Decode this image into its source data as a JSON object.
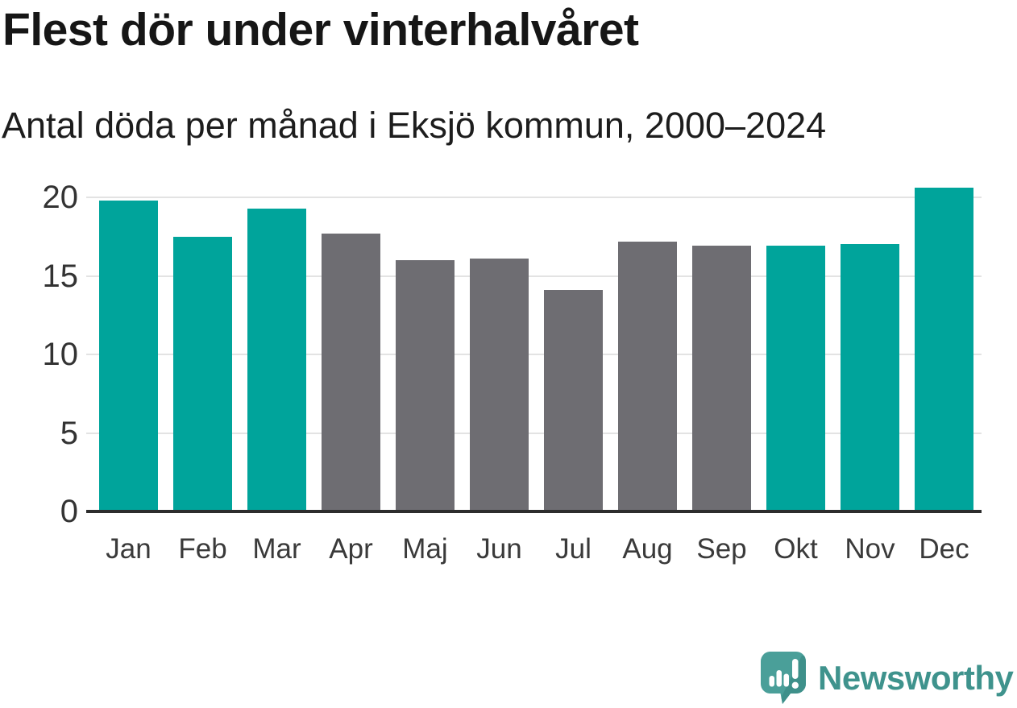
{
  "page": {
    "title": "Flest dör under vinterhalvåret",
    "subtitle": "Antal döda per månad i Eksjö kommun, 2000–2024"
  },
  "chart_data": {
    "type": "bar",
    "title": "Flest dör under vinterhalvåret",
    "subtitle": "Antal döda per månad i Eksjö kommun, 2000–2024",
    "categories": [
      "Jan",
      "Feb",
      "Mar",
      "Apr",
      "Maj",
      "Jun",
      "Jul",
      "Aug",
      "Sep",
      "Okt",
      "Nov",
      "Dec"
    ],
    "values": [
      19.8,
      17.5,
      19.3,
      17.7,
      16.0,
      16.1,
      14.1,
      17.2,
      16.9,
      16.9,
      17.0,
      20.6
    ],
    "highlighted": [
      true,
      true,
      true,
      false,
      false,
      false,
      false,
      false,
      false,
      true,
      true,
      true
    ],
    "colors": {
      "winter_highlight": "#00a49b",
      "summer_muted": "#6e6d72",
      "gridline": "#e3e3e3",
      "axis": "#2d2d2d"
    },
    "yticks": [
      0,
      5,
      10,
      15,
      20
    ],
    "ylim": [
      0,
      21
    ],
    "xlabel": "",
    "ylabel": "",
    "grid": true,
    "legend": "none"
  },
  "branding": {
    "logo_text": "Newsworthy",
    "logo_text_color": "#3f938d",
    "logo_mark_color": "#4a9f99",
    "logo_mark_shade_color": "#3c8d87",
    "logo_mark_icon": "speech-bubble-bar-chart-exclamation"
  }
}
